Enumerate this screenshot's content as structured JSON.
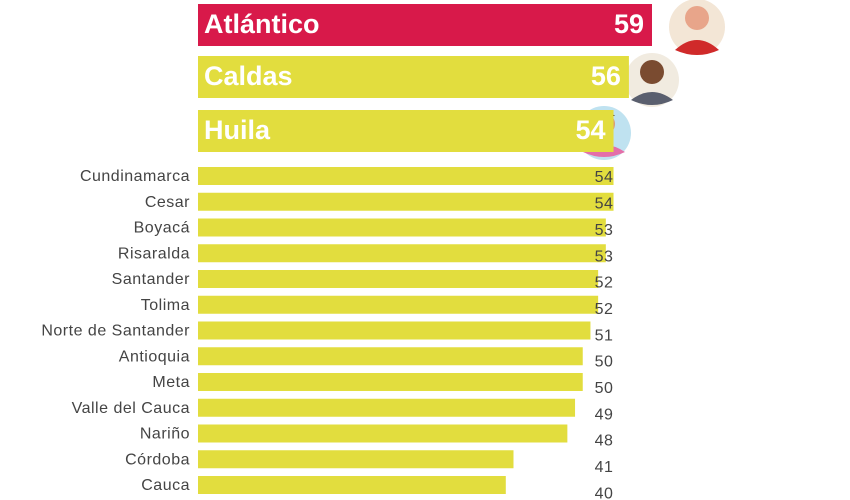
{
  "chart_data": {
    "type": "bar",
    "categories": [
      "Atlántico",
      "Caldas",
      "Huila",
      "Cundinamarca",
      "Cesar",
      "Boyacá",
      "Risaralda",
      "Santander",
      "Tolima",
      "Norte de Santander",
      "Antioquia",
      "Meta",
      "Valle del Cauca",
      "Nariño",
      "Córdoba",
      "Cauca"
    ],
    "values": [
      59,
      56,
      54,
      54,
      54,
      53,
      53,
      52,
      52,
      51,
      50,
      50,
      49,
      48,
      41,
      40
    ],
    "colors": [
      "#d8194a",
      "#e2dd3e",
      "#e2dd3e",
      "#e2dd3e",
      "#e2dd3e",
      "#e2dd3e",
      "#e2dd3e",
      "#e2dd3e",
      "#e2dd3e",
      "#e2dd3e",
      "#e2dd3e",
      "#e2dd3e",
      "#e2dd3e",
      "#e2dd3e",
      "#e2dd3e",
      "#e2dd3e"
    ]
  }
}
